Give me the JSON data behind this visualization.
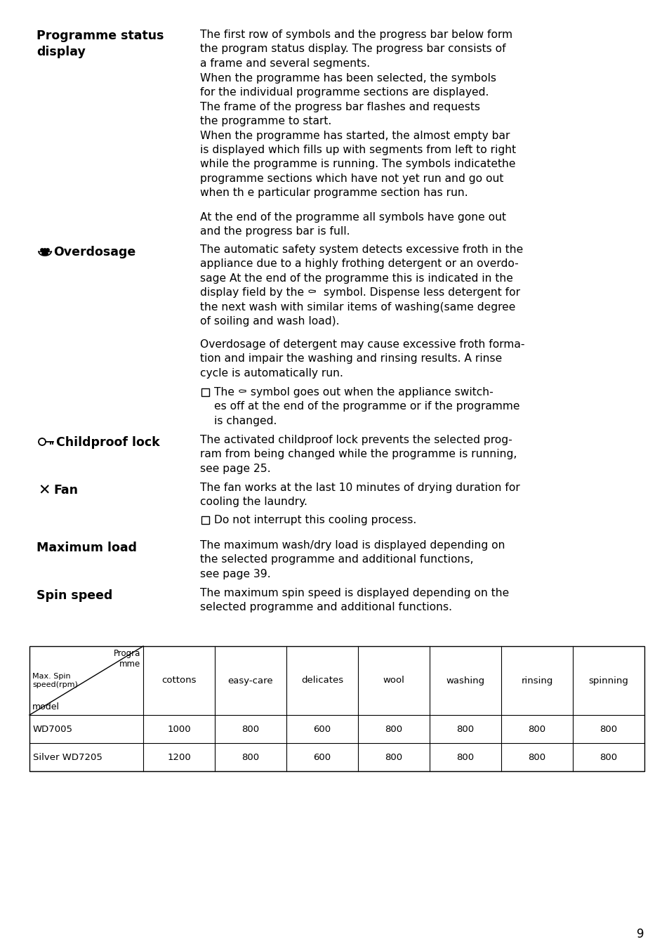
{
  "bg_color": "#ffffff",
  "page_number": "9",
  "sections": [
    {
      "heading": "Programme status\ndisplay",
      "paragraphs": [
        "The first row of symbols and the progress bar below form\nthe program status display. The progress bar consists of\na frame and several segments.",
        "When the programme has been selected, the symbols\nfor the individual programme sections are displayed.\nThe frame of the progress bar flashes and requests\nthe programme to start.\nWhen the programme has started, the almost empty bar\nis displayed which fills up with segments from left to right\nwhile the programme is running. The symbols indicatethe\nprogramme sections which have not yet run and go out\nwhen th e particular programme section has run.",
        "At the end of the programme all symbols have gone out\nand the progress bar is full."
      ]
    }
  ],
  "table": {
    "col_headers": [
      "cottons",
      "easy-care",
      "delicates",
      "wool",
      "washing",
      "rinsing",
      "spinning"
    ],
    "rows": [
      {
        "model": "WD7005",
        "values": [
          1000,
          800,
          600,
          800,
          800,
          800,
          800
        ]
      },
      {
        "model": "Silver WD7205",
        "values": [
          1200,
          800,
          600,
          800,
          800,
          800,
          800
        ]
      }
    ]
  }
}
